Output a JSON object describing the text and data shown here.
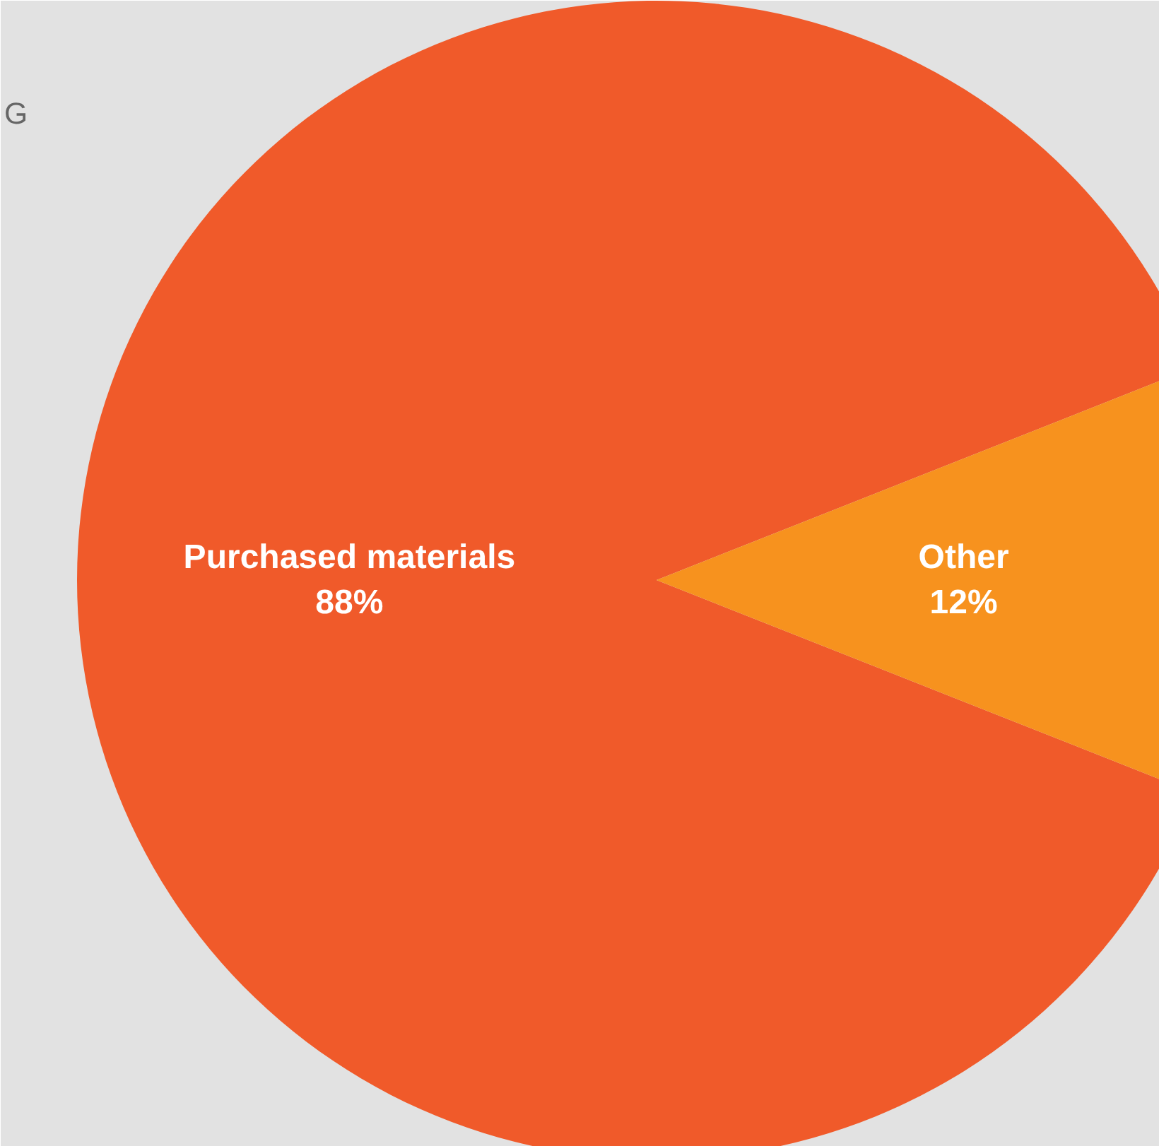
{
  "chart_data": {
    "type": "pie",
    "categories": [
      "Purchased materials",
      "Other"
    ],
    "values": [
      88,
      12
    ],
    "colors": [
      "#f05a2a",
      "#f7921e"
    ],
    "value_labels": [
      "88%",
      "12%"
    ],
    "annotations": [
      "G"
    ]
  }
}
